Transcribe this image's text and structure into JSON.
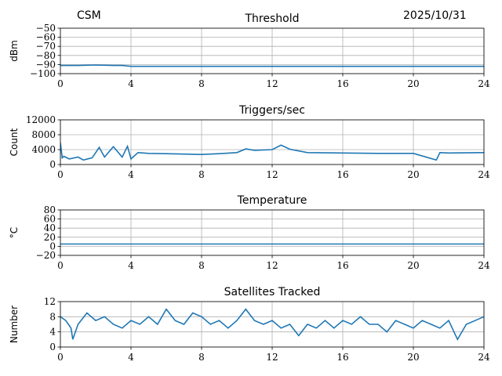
{
  "header": {
    "left": "CSM",
    "right": "2025/10/31"
  },
  "colors": {
    "series": "#1f77b4",
    "grid": "#b0b0b0",
    "axis": "#000000"
  },
  "chart_data": [
    {
      "type": "line",
      "title": "Threshold",
      "xlabel": "",
      "ylabel": "dBm",
      "xlim": [
        0,
        24
      ],
      "ylim": [
        -100,
        -50
      ],
      "xticks": [
        0,
        4,
        8,
        12,
        16,
        20,
        24
      ],
      "yticks": [
        -100,
        -90,
        -80,
        -70,
        -60,
        -50
      ],
      "grid": true,
      "series": [
        {
          "x": [
            0,
            1,
            2,
            3,
            3.5,
            4,
            6,
            8,
            10,
            12,
            14,
            16,
            18,
            20,
            22,
            24
          ],
          "y": [
            -91,
            -91,
            -90.5,
            -91,
            -91,
            -92,
            -92,
            -92,
            -92,
            -92,
            -92,
            -92,
            -92,
            -92,
            -92,
            -92
          ]
        }
      ]
    },
    {
      "type": "line",
      "title": "Triggers/sec",
      "xlabel": "",
      "ylabel": "Count",
      "xlim": [
        0,
        24
      ],
      "ylim": [
        0,
        12000
      ],
      "xticks": [
        0,
        4,
        8,
        12,
        16,
        20,
        24
      ],
      "yticks": [
        0,
        4000,
        8000,
        12000
      ],
      "grid": true,
      "series": [
        {
          "x": [
            0,
            0.1,
            0.2,
            0.5,
            1,
            1.3,
            1.8,
            2.2,
            2.5,
            3,
            3.5,
            3.8,
            4,
            4.4,
            5,
            6,
            7,
            8,
            9,
            10,
            10.5,
            11,
            12,
            12.5,
            13,
            14,
            16,
            18,
            20,
            21.3,
            21.5,
            22,
            24
          ],
          "y": [
            5800,
            1800,
            2200,
            1500,
            2000,
            1200,
            1800,
            4600,
            2000,
            4800,
            2000,
            4900,
            1500,
            3200,
            3000,
            2900,
            2800,
            2700,
            2900,
            3200,
            4200,
            3800,
            4000,
            5200,
            4100,
            3200,
            3100,
            3000,
            3000,
            1200,
            3200,
            3100,
            3200
          ]
        }
      ]
    },
    {
      "type": "line",
      "title": "Temperature",
      "xlabel": "",
      "ylabel": "°C",
      "xlim": [
        0,
        24
      ],
      "ylim": [
        -20,
        80
      ],
      "xticks": [
        0,
        4,
        8,
        12,
        16,
        20,
        24
      ],
      "yticks": [
        -20,
        0,
        20,
        40,
        60,
        80
      ],
      "grid": true,
      "series": [
        {
          "x": [
            0,
            24
          ],
          "y": [
            5,
            5
          ]
        }
      ]
    },
    {
      "type": "line",
      "title": "Satellites Tracked",
      "xlabel": "",
      "ylabel": "Number",
      "xlim": [
        0,
        24
      ],
      "ylim": [
        0,
        12
      ],
      "xticks": [
        0,
        4,
        8,
        12,
        16,
        20,
        24
      ],
      "yticks": [
        0,
        4,
        8,
        12
      ],
      "grid": true,
      "series": [
        {
          "x": [
            0,
            0.3,
            0.6,
            0.7,
            1,
            1.5,
            2,
            2.5,
            3,
            3.5,
            4,
            4.5,
            5,
            5.5,
            6,
            6.5,
            7,
            7.5,
            8,
            8.5,
            9,
            9.5,
            10,
            10.5,
            11,
            11.5,
            12,
            12.5,
            13,
            13.5,
            14,
            14.5,
            15,
            15.5,
            16,
            16.5,
            17,
            17.5,
            18,
            18.5,
            19,
            19.5,
            20,
            20.5,
            21,
            21.5,
            22,
            22.5,
            23,
            23.5,
            24
          ],
          "y": [
            8,
            7,
            5,
            2,
            6,
            9,
            7,
            8,
            6,
            5,
            7,
            6,
            8,
            6,
            10,
            7,
            6,
            9,
            8,
            6,
            7,
            5,
            7,
            10,
            7,
            6,
            7,
            5,
            6,
            3,
            6,
            5,
            7,
            5,
            7,
            6,
            8,
            6,
            6,
            4,
            7,
            6,
            5,
            7,
            6,
            5,
            7,
            2,
            6,
            7,
            8
          ]
        }
      ]
    }
  ]
}
